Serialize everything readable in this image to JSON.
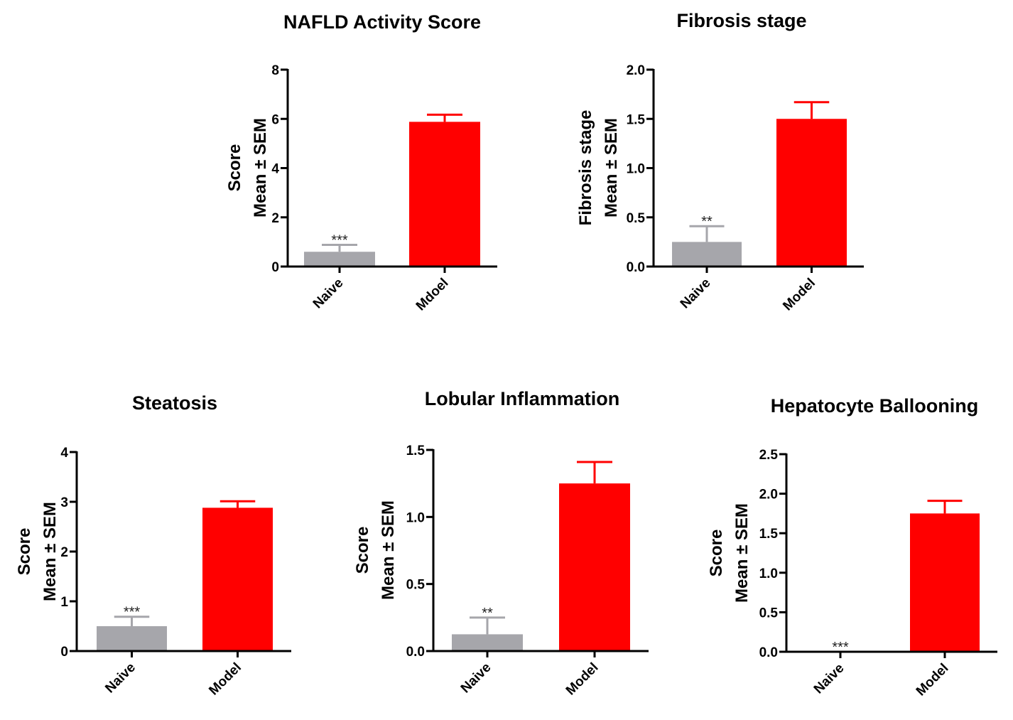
{
  "chart_data": [
    {
      "type": "bar",
      "title": "NAFLD Activity Score",
      "ylabel_lines": [
        "Score",
        "Mean ± SEM"
      ],
      "xlabel": "",
      "categories": [
        "Naive",
        "Mdoel"
      ],
      "values": [
        0.6,
        5.88
      ],
      "errors": [
        0.28,
        0.29
      ],
      "significance": [
        "***",
        ""
      ],
      "colors": [
        "#a6a6ab",
        "#ff0000"
      ],
      "ylim": [
        0,
        8
      ],
      "yticks": [
        0,
        2,
        4,
        6,
        8
      ],
      "ytick_labels": [
        "0",
        "2",
        "4",
        "6",
        "8"
      ],
      "grid": false
    },
    {
      "type": "bar",
      "title": "Fibrosis stage",
      "ylabel_lines": [
        "Fibrosis stage",
        "Mean ± SEM"
      ],
      "xlabel": "",
      "categories": [
        "Naive",
        "Model"
      ],
      "values": [
        0.25,
        1.5
      ],
      "errors": [
        0.16,
        0.17
      ],
      "significance": [
        "**",
        ""
      ],
      "colors": [
        "#a6a6ab",
        "#ff0000"
      ],
      "ylim": [
        0,
        2.0
      ],
      "yticks": [
        0,
        0.5,
        1.0,
        1.5,
        2.0
      ],
      "ytick_labels": [
        "0.0",
        "0.5",
        "1.0",
        "1.5",
        "2.0"
      ],
      "grid": false
    },
    {
      "type": "bar",
      "title": "Steatosis",
      "ylabel_lines": [
        "Score",
        "Mean ± SEM"
      ],
      "xlabel": "",
      "categories": [
        "Naive",
        "Model"
      ],
      "values": [
        0.5,
        2.88
      ],
      "errors": [
        0.19,
        0.13
      ],
      "significance": [
        "***",
        ""
      ],
      "colors": [
        "#a6a6ab",
        "#ff0000"
      ],
      "ylim": [
        0,
        4
      ],
      "yticks": [
        0,
        1,
        2,
        3,
        4
      ],
      "ytick_labels": [
        "0",
        "1",
        "2",
        "3",
        "4"
      ],
      "grid": false
    },
    {
      "type": "bar",
      "title": "Lobular Inflammation",
      "ylabel_lines": [
        "Score",
        "Mean ± SEM"
      ],
      "xlabel": "",
      "categories": [
        "Naive",
        "Model"
      ],
      "values": [
        0.125,
        1.25
      ],
      "errors": [
        0.125,
        0.16
      ],
      "significance": [
        "**",
        ""
      ],
      "colors": [
        "#a6a6ab",
        "#ff0000"
      ],
      "ylim": [
        0,
        1.5
      ],
      "yticks": [
        0,
        0.5,
        1.0,
        1.5
      ],
      "ytick_labels": [
        "0.0",
        "0.5",
        "1.0",
        "1.5"
      ],
      "grid": false
    },
    {
      "type": "bar",
      "title": "Hepatocyte Ballooning",
      "ylabel_lines": [
        "Score",
        "Mean ± SEM"
      ],
      "xlabel": "",
      "categories": [
        "Naive",
        "Model"
      ],
      "values": [
        0,
        1.75
      ],
      "errors": [
        0,
        0.16
      ],
      "significance": [
        "***",
        ""
      ],
      "colors": [
        "#a6a6ab",
        "#ff0000"
      ],
      "ylim": [
        0,
        2.5
      ],
      "yticks": [
        0,
        0.5,
        1.0,
        1.5,
        2.0,
        2.5
      ],
      "ytick_labels": [
        "0.0",
        "0.5",
        "1.0",
        "1.5",
        "2.0",
        "2.5"
      ],
      "grid": false
    }
  ]
}
